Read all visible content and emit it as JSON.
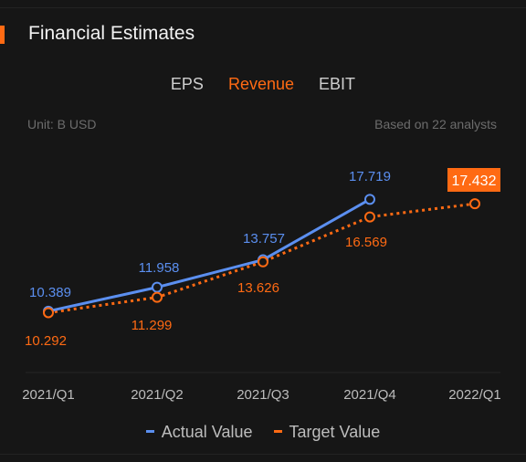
{
  "header": {
    "title": "Financial Estimates"
  },
  "tabs": [
    {
      "label": "EPS",
      "active": false
    },
    {
      "label": "Revenue",
      "active": true
    },
    {
      "label": "EBIT",
      "active": false
    }
  ],
  "meta": {
    "unit": "Unit: B USD",
    "analysts": "Based on 22 analysts"
  },
  "colors": {
    "accent": "#ff6a13",
    "actual": "#5b8ff0",
    "target": "#ff6a13"
  },
  "chart_data": {
    "type": "line",
    "categories": [
      "2021/Q1",
      "2021/Q2",
      "2021/Q3",
      "2021/Q4",
      "2022/Q1"
    ],
    "series": [
      {
        "name": "Actual Value",
        "values": [
          10.389,
          11.958,
          13.757,
          17.719,
          null
        ],
        "style": "solid"
      },
      {
        "name": "Target Value",
        "values": [
          10.292,
          11.299,
          13.626,
          16.569,
          17.432
        ],
        "style": "dotted"
      }
    ],
    "value_labels": {
      "actual": [
        "10.389",
        "11.958",
        "13.757",
        "17.719"
      ],
      "target": [
        "10.292",
        "11.299",
        "13.626",
        "16.569",
        "17.432"
      ]
    },
    "xlabel": "",
    "ylabel": "",
    "grid": false,
    "legend_position": "bottom-center"
  },
  "legend": [
    {
      "label": "Actual Value"
    },
    {
      "label": "Target Value"
    }
  ]
}
